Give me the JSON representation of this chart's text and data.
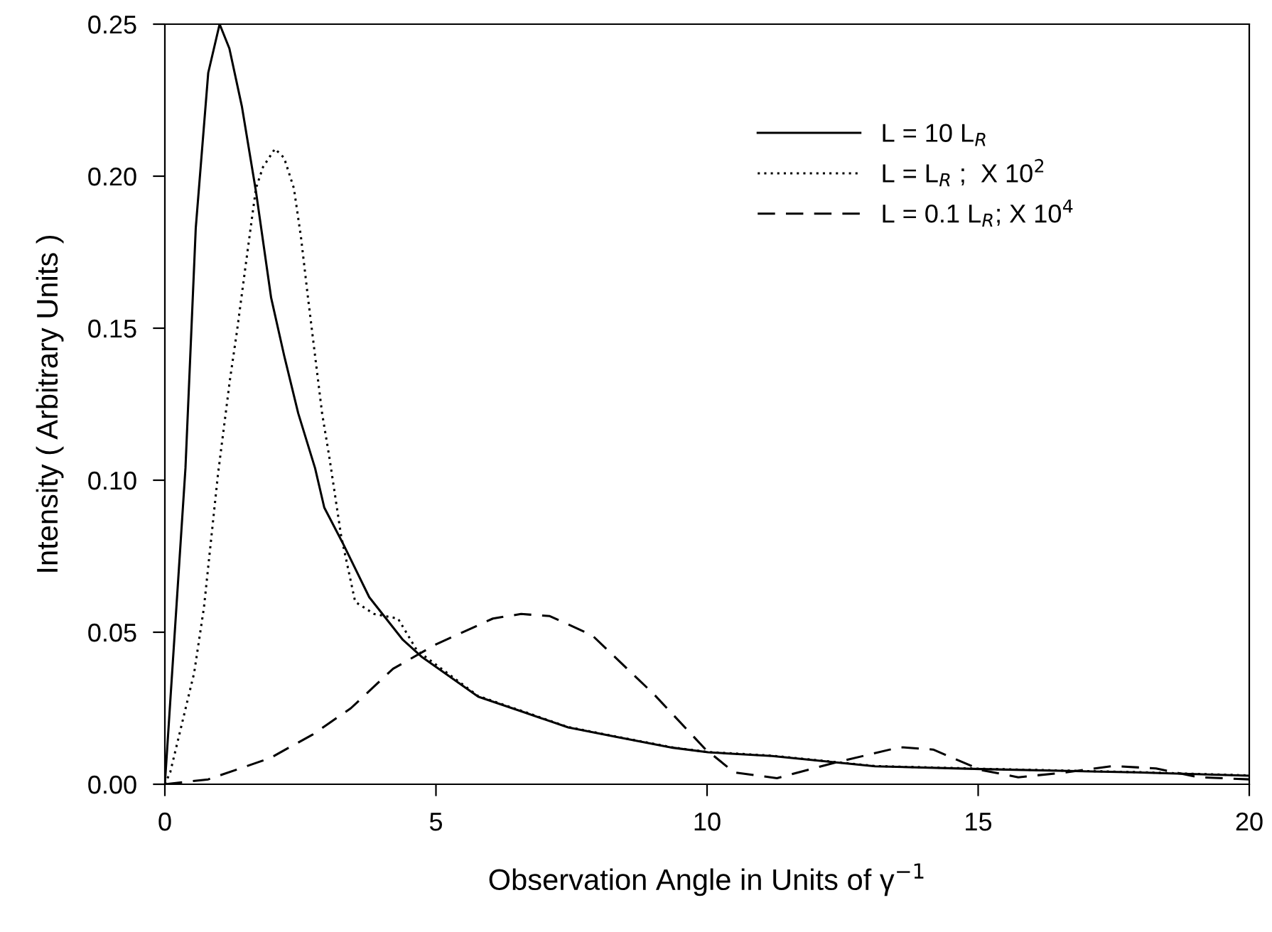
{
  "chart_data": {
    "type": "line",
    "xlabel": "Observation Angle in Units of γ$^{−1}$",
    "ylabel": "Intensity ( Arbitrary Units )",
    "xlim": [
      0,
      20
    ],
    "xticks": [
      0,
      5,
      10,
      15,
      20
    ],
    "ylim": [
      0,
      0.25
    ],
    "yticks": [
      {
        "value": 0,
        "label": "0.00"
      },
      {
        "value": 0.05,
        "label": "0.05"
      },
      {
        "value": 0.1,
        "label": "0.10"
      },
      {
        "value": 0.15,
        "label": "0.15"
      },
      {
        "value": 0.2,
        "label": "0.20"
      },
      {
        "value": 0.25,
        "label": "0.25"
      }
    ],
    "grid": false,
    "legend": "top right",
    "marker": "none",
    "series": [
      {
        "name": "L = 10 L$_{R}$",
        "color": "#000000",
        "line_style": "solid",
        "x": [
          0,
          0.38,
          0.57,
          0.8,
          1.01,
          1.19,
          1.42,
          1.68,
          1.96,
          2.2,
          2.46,
          2.77,
          2.94,
          3.29,
          3.77,
          4.39,
          4.73,
          5.78,
          6.57,
          7.44,
          8.32,
          9.37,
          10.02,
          11.2,
          13.1,
          15.05,
          17.9,
          20
        ],
        "values": [
          0,
          0.104,
          0.183,
          0.234,
          0.25,
          0.242,
          0.223,
          0.195,
          0.16,
          0.141,
          0.122,
          0.104,
          0.091,
          0.079,
          0.0615,
          0.0475,
          0.042,
          0.0288,
          0.024,
          0.0187,
          0.0156,
          0.012,
          0.0105,
          0.0093,
          0.0059,
          0.005,
          0.0039,
          0.0028
        ]
      },
      {
        "name": "L = L$_{R}$ ;  X 10$^{2}$",
        "color": "#000000",
        "line_style": "dotted",
        "x": [
          0,
          0.1,
          0.54,
          0.72,
          0.98,
          1.2,
          1.33,
          1.5,
          1.68,
          1.81,
          2.03,
          2.2,
          2.38,
          2.51,
          2.64,
          2.77,
          2.9,
          3.03,
          3.25,
          3.51,
          3.86,
          4.3,
          4.65,
          5.78,
          6.57,
          7.44,
          8.32,
          9.37,
          10.02,
          11.2,
          13.1,
          15.05,
          17.9,
          20
        ],
        "values": [
          0,
          0.004,
          0.0366,
          0.058,
          0.102,
          0.133,
          0.149,
          0.172,
          0.196,
          0.203,
          0.209,
          0.206,
          0.196,
          0.18,
          0.16,
          0.141,
          0.122,
          0.108,
          0.0818,
          0.06,
          0.056,
          0.0545,
          0.044,
          0.029,
          0.0242,
          0.0188,
          0.0157,
          0.0121,
          0.0106,
          0.0094,
          0.006,
          0.0051,
          0.004,
          0.0029
        ]
      },
      {
        "name": "L = 0.1 L$_{R}$; X 10$^{4}$",
        "color": "#000000",
        "line_style": "dashed",
        "x": [
          0,
          0.8,
          1.94,
          2.73,
          3.43,
          4.21,
          5.0,
          6.05,
          6.57,
          7.1,
          7.88,
          9.02,
          9.96,
          10.5,
          11.29,
          12.34,
          13.56,
          14.17,
          15.05,
          15.74,
          16.62,
          17.49,
          18.28,
          19.07,
          20
        ],
        "values": [
          0,
          0.0016,
          0.0086,
          0.0164,
          0.025,
          0.038,
          0.046,
          0.0545,
          0.056,
          0.0553,
          0.049,
          0.0296,
          0.0117,
          0.0039,
          0.002,
          0.007,
          0.0122,
          0.0114,
          0.0047,
          0.0023,
          0.0039,
          0.006,
          0.0052,
          0.0023,
          0.0016
        ]
      }
    ]
  }
}
